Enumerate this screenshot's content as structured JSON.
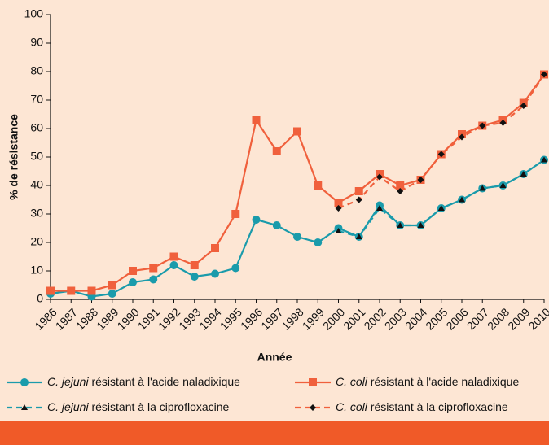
{
  "chart_data": {
    "type": "line",
    "x_label": "Année",
    "y_label": "% de résistance",
    "categories": [
      "1986",
      "1987",
      "1988",
      "1989",
      "1990",
      "1991",
      "1992",
      "1993",
      "1994",
      "1995",
      "1996",
      "1997",
      "1998",
      "1999",
      "2000",
      "2001",
      "2002",
      "2003",
      "2004",
      "2005",
      "2006",
      "2007",
      "2008",
      "2009",
      "2010"
    ],
    "ylim": [
      0,
      100
    ],
    "yticks": [
      0,
      10,
      20,
      30,
      40,
      50,
      60,
      70,
      80,
      90,
      100
    ],
    "series": [
      {
        "name": "C. jejuni résistant à l'acide naladixique",
        "color": "#1a9bab",
        "values": [
          2,
          3,
          1,
          2,
          6,
          7,
          12,
          8,
          9,
          11,
          28,
          26,
          22,
          20,
          25,
          22,
          33,
          26,
          26,
          32,
          35,
          39,
          40,
          44,
          49
        ]
      },
      {
        "name": "C. coli résistant à l'acide naladixique",
        "color": "#f0603c",
        "values": [
          3,
          3,
          3,
          5,
          10,
          11,
          15,
          12,
          18,
          30,
          63,
          52,
          59,
          40,
          34,
          38,
          44,
          40,
          42,
          51,
          58,
          61,
          63,
          69,
          79
        ]
      },
      {
        "name": "C. jejuni résistant à la ciprofloxacine",
        "color": "#1a9bab",
        "values": [
          null,
          null,
          null,
          null,
          null,
          null,
          null,
          null,
          null,
          null,
          null,
          null,
          null,
          null,
          24,
          22,
          32,
          26,
          26,
          32,
          35,
          39,
          40,
          44,
          49
        ]
      },
      {
        "name": "C. coli résistant à la ciprofloxacine",
        "color": "#f0603c",
        "values": [
          null,
          null,
          null,
          null,
          null,
          null,
          null,
          null,
          null,
          null,
          null,
          null,
          null,
          null,
          32,
          35,
          43,
          38,
          42,
          51,
          57,
          61,
          62,
          68,
          79
        ]
      }
    ]
  }
}
